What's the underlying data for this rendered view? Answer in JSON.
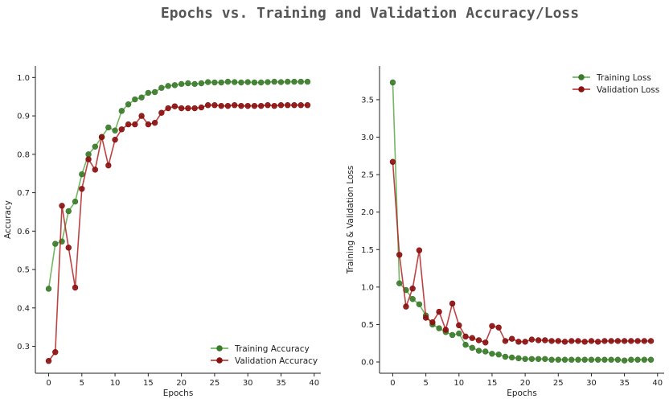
{
  "suptitle": "Epochs vs. Training and Validation Accuracy/Loss",
  "colors": {
    "training": "#5aaa46",
    "validation": "#b22222",
    "training_edge": "#3a7a2a",
    "validation_edge": "#8a1010"
  },
  "chart_data": [
    {
      "type": "line",
      "xlabel": "Epochs",
      "ylabel": "Accuracy",
      "xlim": [
        -2,
        41
      ],
      "ylim": [
        0.23,
        1.03
      ],
      "xticks": [
        0,
        5,
        10,
        15,
        20,
        25,
        30,
        35,
        40
      ],
      "yticks": [
        0.3,
        0.4,
        0.5,
        0.6,
        0.7,
        0.8,
        0.9,
        1.0
      ],
      "ytick_labels": [
        "0.3",
        "0.4",
        "0.5",
        "0.6",
        "0.7",
        "0.8",
        "0.9",
        "1.0"
      ],
      "legend_position": "lower-right",
      "x": [
        0,
        1,
        2,
        3,
        4,
        5,
        6,
        7,
        8,
        9,
        10,
        11,
        12,
        13,
        14,
        15,
        16,
        17,
        18,
        19,
        20,
        21,
        22,
        23,
        24,
        25,
        26,
        27,
        28,
        29,
        30,
        31,
        32,
        33,
        34,
        35,
        36,
        37,
        38,
        39
      ],
      "series": [
        {
          "name": "Training Accuracy",
          "color_key": "training",
          "values": [
            0.45,
            0.567,
            0.573,
            0.652,
            0.677,
            0.748,
            0.8,
            0.82,
            0.845,
            0.87,
            0.862,
            0.913,
            0.93,
            0.943,
            0.948,
            0.96,
            0.962,
            0.973,
            0.978,
            0.98,
            0.983,
            0.985,
            0.983,
            0.985,
            0.988,
            0.987,
            0.987,
            0.989,
            0.988,
            0.987,
            0.988,
            0.987,
            0.987,
            0.988,
            0.989,
            0.988,
            0.989,
            0.989,
            0.989,
            0.989
          ]
        },
        {
          "name": "Validation Accuracy",
          "color_key": "validation",
          "values": [
            0.262,
            0.285,
            0.666,
            0.557,
            0.453,
            0.71,
            0.787,
            0.76,
            0.845,
            0.771,
            0.838,
            0.865,
            0.878,
            0.878,
            0.9,
            0.878,
            0.882,
            0.908,
            0.92,
            0.925,
            0.92,
            0.92,
            0.92,
            0.922,
            0.928,
            0.928,
            0.926,
            0.926,
            0.928,
            0.926,
            0.926,
            0.926,
            0.926,
            0.928,
            0.926,
            0.928,
            0.928,
            0.928,
            0.928,
            0.928
          ]
        }
      ]
    },
    {
      "type": "line",
      "xlabel": "Epochs",
      "ylabel": "Training & Validation Loss",
      "xlim": [
        -2,
        41
      ],
      "ylim": [
        -0.15,
        3.95
      ],
      "xticks": [
        0,
        5,
        10,
        15,
        20,
        25,
        30,
        35,
        40
      ],
      "yticks": [
        0.0,
        0.5,
        1.0,
        1.5,
        2.0,
        2.5,
        3.0,
        3.5
      ],
      "ytick_labels": [
        "0.0",
        "0.5",
        "1.0",
        "1.5",
        "2.0",
        "2.5",
        "3.0",
        "3.5"
      ],
      "legend_position": "upper-right",
      "x": [
        0,
        1,
        2,
        3,
        4,
        5,
        6,
        7,
        8,
        9,
        10,
        11,
        12,
        13,
        14,
        15,
        16,
        17,
        18,
        19,
        20,
        21,
        22,
        23,
        24,
        25,
        26,
        27,
        28,
        29,
        30,
        31,
        32,
        33,
        34,
        35,
        36,
        37,
        38,
        39
      ],
      "series": [
        {
          "name": "Training Loss",
          "color_key": "training",
          "values": [
            3.73,
            1.05,
            0.96,
            0.84,
            0.77,
            0.62,
            0.5,
            0.45,
            0.4,
            0.36,
            0.38,
            0.23,
            0.19,
            0.15,
            0.14,
            0.11,
            0.1,
            0.07,
            0.06,
            0.05,
            0.04,
            0.04,
            0.04,
            0.04,
            0.03,
            0.03,
            0.03,
            0.03,
            0.03,
            0.03,
            0.03,
            0.03,
            0.03,
            0.03,
            0.03,
            0.02,
            0.03,
            0.03,
            0.03,
            0.03
          ]
        },
        {
          "name": "Validation Loss",
          "color_key": "validation",
          "values": [
            2.67,
            1.43,
            0.74,
            0.98,
            1.49,
            0.59,
            0.53,
            0.67,
            0.43,
            0.78,
            0.49,
            0.34,
            0.32,
            0.29,
            0.26,
            0.48,
            0.46,
            0.28,
            0.31,
            0.27,
            0.27,
            0.3,
            0.29,
            0.29,
            0.28,
            0.28,
            0.27,
            0.28,
            0.28,
            0.27,
            0.28,
            0.27,
            0.28,
            0.28,
            0.28,
            0.28,
            0.28,
            0.28,
            0.28,
            0.28
          ]
        }
      ]
    }
  ]
}
